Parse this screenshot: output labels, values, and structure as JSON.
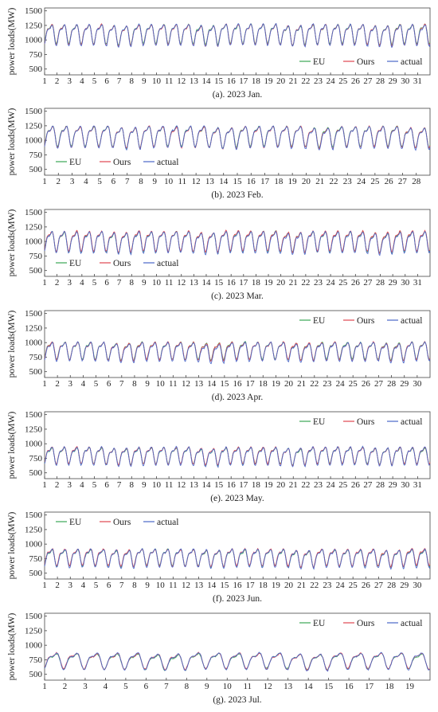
{
  "ylabel": "power loads(MW)",
  "yticks": [
    500,
    750,
    1000,
    1250,
    1500
  ],
  "colors": {
    "EU": "#3aa655",
    "Ours": "#e0454f",
    "actual": "#4a66c8"
  },
  "chart_data": [
    {
      "type": "line",
      "caption": "(a). 2023 Jan.",
      "days": 31,
      "ylim": [
        400,
        1550
      ],
      "legend": "bottom-right",
      "series": [
        {
          "name": "EU",
          "base": 1130,
          "amp": 200
        },
        {
          "name": "Ours",
          "base": 1125,
          "amp": 210
        },
        {
          "name": "actual",
          "base": 1120,
          "amp": 220
        }
      ]
    },
    {
      "type": "line",
      "caption": "(b). 2023 Feb.",
      "days": 28,
      "ylim": [
        400,
        1550
      ],
      "legend": "bottom-left",
      "series": [
        {
          "name": "EU",
          "base": 1100,
          "amp": 210
        },
        {
          "name": "Ours",
          "base": 1095,
          "amp": 215
        },
        {
          "name": "actual",
          "base": 1090,
          "amp": 225
        }
      ]
    },
    {
      "type": "line",
      "caption": "(c). 2023 Mar.",
      "days": 31,
      "ylim": [
        400,
        1550
      ],
      "legend": "bottom-left",
      "series": [
        {
          "name": "EU",
          "base": 1030,
          "amp": 210
        },
        {
          "name": "Ours",
          "base": 1040,
          "amp": 210
        },
        {
          "name": "actual",
          "base": 1020,
          "amp": 220
        }
      ]
    },
    {
      "type": "line",
      "caption": "(d). 2023 Apr.",
      "days": 30,
      "ylim": [
        400,
        1550
      ],
      "legend": "top-right",
      "series": [
        {
          "name": "EU",
          "base": 890,
          "amp": 180
        },
        {
          "name": "Ours",
          "base": 885,
          "amp": 185
        },
        {
          "name": "actual",
          "base": 870,
          "amp": 195
        }
      ]
    },
    {
      "type": "line",
      "caption": "(e). 2023 May.",
      "days": 31,
      "ylim": [
        400,
        1550
      ],
      "legend": "top-right",
      "series": [
        {
          "name": "EU",
          "base": 820,
          "amp": 170
        },
        {
          "name": "Ours",
          "base": 825,
          "amp": 175
        },
        {
          "name": "actual",
          "base": 815,
          "amp": 190
        }
      ]
    },
    {
      "type": "line",
      "caption": "(f). 2023 Jun.",
      "days": 30,
      "ylim": [
        400,
        1550
      ],
      "legend": "top-left",
      "series": [
        {
          "name": "EU",
          "base": 790,
          "amp": 170
        },
        {
          "name": "Ours",
          "base": 800,
          "amp": 175
        },
        {
          "name": "actual",
          "base": 785,
          "amp": 190
        }
      ]
    },
    {
      "type": "line",
      "caption": "(g). 2023 Jul.",
      "days": 19,
      "ylim": [
        400,
        1550
      ],
      "legend": "top-right",
      "series": [
        {
          "name": "EU",
          "base": 745,
          "amp": 160
        },
        {
          "name": "Ours",
          "base": 755,
          "amp": 165
        },
        {
          "name": "actual",
          "base": 750,
          "amp": 175
        }
      ]
    }
  ]
}
